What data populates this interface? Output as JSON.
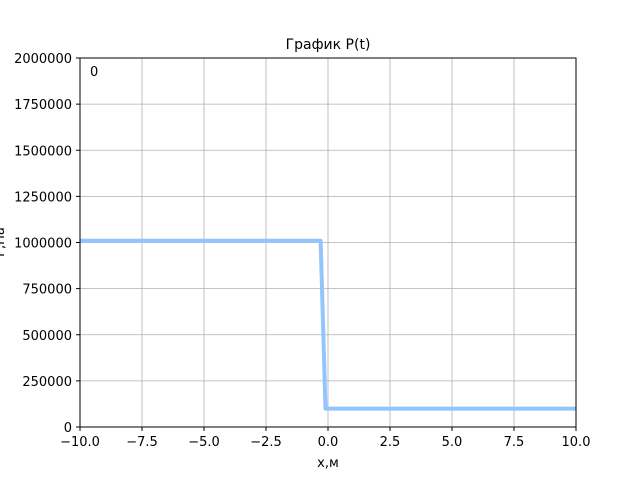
{
  "chart_data": {
    "type": "line",
    "title": "График P(t)",
    "xlabel": "x,м",
    "ylabel": "P,Па",
    "annotation": "0",
    "xlim": [
      -10,
      10
    ],
    "ylim": [
      0,
      2000000
    ],
    "xticks": [
      -10,
      -7.5,
      -5,
      -2.5,
      0,
      2.5,
      5,
      7.5,
      10
    ],
    "xtick_labels": [
      "−10.0",
      "−7.5",
      "−5.0",
      "−2.5",
      "0.0",
      "2.5",
      "5.0",
      "7.5",
      "10.0"
    ],
    "yticks": [
      0,
      250000,
      500000,
      750000,
      1000000,
      1250000,
      1500000,
      1750000,
      2000000
    ],
    "ytick_labels": [
      "0",
      "250000",
      "500000",
      "750000",
      "1000000",
      "1250000",
      "1500000",
      "1750000",
      "2000000"
    ],
    "grid": true,
    "series": [
      {
        "color": "#92c5fc",
        "x": [
          -10,
          -0.3,
          -0.1,
          0.0,
          10
        ],
        "y": [
          1010000,
          1010000,
          100000,
          100000,
          100000
        ]
      }
    ]
  }
}
